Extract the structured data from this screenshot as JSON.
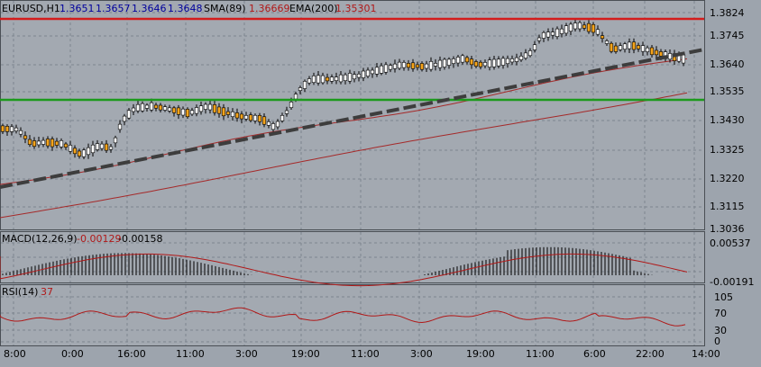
{
  "main": {
    "symbol": "EURUSD,H1",
    "ohlc": [
      "1.3651",
      "1.3657",
      "1.3646",
      "1.3648"
    ],
    "sma_label": "SMA(89)",
    "sma_value": "1.36669",
    "ema_label": "EMA(200)",
    "ema_value": "1.35301",
    "price_ticks": [
      "1.3824",
      "1.3745",
      "1.3640",
      "1.3535",
      "1.3430",
      "1.3325",
      "1.3220",
      "1.3115",
      "1.3036"
    ]
  },
  "macd": {
    "label": "MACD(12,26,9)",
    "value1": "-0.00129",
    "value2": "-0.00158",
    "ticks": [
      "0.00537",
      "-0.00191"
    ]
  },
  "rsi": {
    "label": "RSI(14)",
    "value": "37",
    "ticks": [
      "105",
      "70",
      "30",
      "0"
    ]
  },
  "time_axis": [
    "8:00",
    "0:00",
    "16:00",
    "11:00",
    "3:00",
    "19:00",
    "11:00",
    "3:00",
    "19:00",
    "11:00",
    "6:00",
    "22:00",
    "14:00"
  ],
  "colors": {
    "background": "#9da4ad",
    "grid": "#7e858e",
    "resistance": "#d41c1c",
    "support": "#1c9a1c",
    "trendline": "#3d3d3d",
    "ma": "#a52a2a",
    "bull_candle": "#ffffff",
    "bear_candle": "#f5a41c",
    "macd_hist": "#000000",
    "macd_signal": "#b01818",
    "rsi_line": "#b01818",
    "label_blue": "#00009c",
    "label_red": "#b01818"
  }
}
